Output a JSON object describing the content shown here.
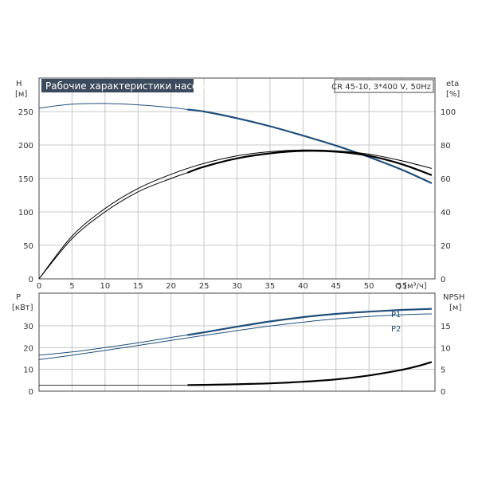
{
  "chart_data": [
    {
      "type": "line",
      "title": "Рабочие характеристики насоса",
      "subtitle": "CR 45-10, 3*400 V, 50Hz",
      "xlabel": "Q [м³/ч]",
      "ylabel_left": [
        "H",
        "[м]"
      ],
      "ylabel_right": [
        "eta",
        "[%]"
      ],
      "xlim": [
        0,
        60
      ],
      "ylim_left": [
        0,
        300
      ],
      "ylim_right": [
        0,
        120
      ],
      "x_ticks": [
        0,
        5,
        10,
        15,
        20,
        25,
        30,
        35,
        40,
        45,
        50,
        55
      ],
      "y_ticks_left": [
        0,
        50,
        100,
        150,
        200,
        250
      ],
      "y_ticks_right": [
        0,
        20,
        40,
        60,
        80,
        100
      ],
      "grid": true,
      "series": [
        {
          "axis": "left",
          "color": "#1f4e7a",
          "x": [
            0,
            5,
            10,
            15,
            20,
            22.5,
            25,
            30,
            35,
            40,
            45,
            50,
            55,
            59.5
          ],
          "y": [
            255,
            261,
            262,
            260,
            256,
            253,
            250,
            240,
            228,
            214,
            199,
            182,
            163,
            143
          ]
        },
        {
          "axis": "right",
          "color": "#000000",
          "x": [
            0,
            5,
            10,
            15,
            20,
            22.5,
            25,
            30,
            35,
            40,
            45,
            50,
            55,
            59.5
          ],
          "y": [
            0,
            24,
            40,
            52,
            60,
            63.5,
            67,
            72,
            75,
            76.5,
            76,
            73.5,
            68.5,
            62
          ]
        },
        {
          "axis": "right",
          "color": "#000000",
          "x": [
            0,
            5,
            10,
            15,
            20,
            25,
            30,
            35,
            40,
            45,
            50,
            55,
            59.5
          ],
          "y": [
            0,
            25.5,
            42,
            54,
            62.5,
            69,
            73.5,
            76,
            77,
            76.5,
            74.5,
            70.5,
            66
          ]
        }
      ]
    },
    {
      "type": "line",
      "ylabel_left": [
        "P",
        "[кВт]"
      ],
      "ylabel_right": [
        "NPSH",
        "[м]"
      ],
      "xlim": [
        0,
        60
      ],
      "ylim_left": [
        0,
        45
      ],
      "ylim_right": [
        0,
        22.5
      ],
      "y_ticks_left": [
        0,
        10,
        20,
        30
      ],
      "y_ticks_right": [
        0,
        5,
        10,
        15
      ],
      "grid": true,
      "series": [
        {
          "name": "P1",
          "axis": "left",
          "color": "#1f4e7a",
          "x": [
            0,
            5,
            10,
            15,
            20,
            22.5,
            25,
            30,
            35,
            40,
            45,
            50,
            55,
            59.5
          ],
          "y": [
            16.5,
            18,
            20,
            22.2,
            24.7,
            25.8,
            27,
            29.6,
            32,
            34,
            35.5,
            36.5,
            37.3,
            37.8
          ]
        },
        {
          "name": "P2",
          "axis": "left",
          "color": "#1f4e7a",
          "x": [
            0,
            5,
            10,
            15,
            20,
            25,
            30,
            35,
            40,
            45,
            50,
            55,
            59.5
          ],
          "y": [
            14.5,
            16.5,
            18.7,
            21,
            23.3,
            25.6,
            27.8,
            29.9,
            31.7,
            33.2,
            34.3,
            35.1,
            35.5
          ]
        },
        {
          "axis": "right",
          "color": "#000000",
          "x": [
            22.5,
            25,
            30,
            35,
            40,
            45,
            50,
            55,
            57.5,
            59.5
          ],
          "y": [
            1.4,
            1.45,
            1.6,
            1.8,
            2.15,
            2.7,
            3.6,
            4.9,
            5.8,
            6.7
          ]
        }
      ]
    }
  ],
  "legend_labels": {
    "p1": "P1",
    "p2": "P2"
  }
}
